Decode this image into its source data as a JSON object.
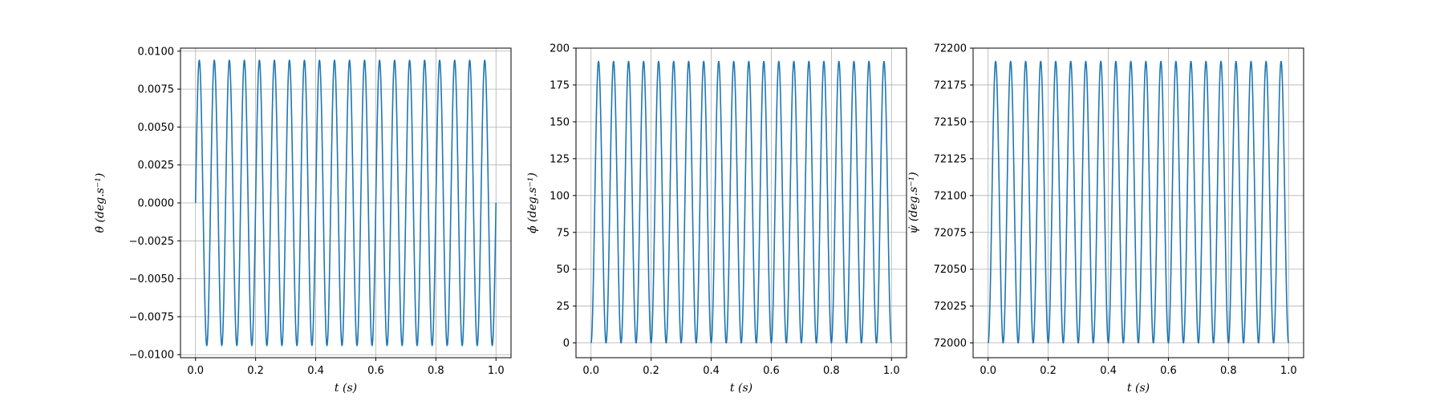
{
  "chart_data": [
    {
      "type": "line",
      "xlabel": "t (s)",
      "ylabel": "θ̇ (deg.s⁻¹)",
      "xlim": [
        -0.05,
        1.05
      ],
      "ylim": [
        -0.0102,
        0.0102
      ],
      "xticks": [
        "0.0",
        "0.2",
        "0.4",
        "0.6",
        "0.8",
        "1.0"
      ],
      "xtick_values": [
        0,
        0.2,
        0.4,
        0.6,
        0.8,
        1.0
      ],
      "yticks": [
        "−0.0100",
        "−0.0075",
        "−0.0050",
        "−0.0025",
        "0.0000",
        "0.0025",
        "0.0050",
        "0.0075",
        "0.0100"
      ],
      "ytick_values": [
        -0.01,
        -0.0075,
        -0.005,
        -0.0025,
        0,
        0.0025,
        0.005,
        0.0075,
        0.01
      ],
      "grid": true,
      "series": [
        {
          "shape": "sine",
          "x_start": 0,
          "x_end": 1.0,
          "cycles": 20,
          "amplitude": 0.0094,
          "offset": 0,
          "phase": 0,
          "color": "#1f77b4"
        }
      ]
    },
    {
      "type": "line",
      "xlabel": "t (s)",
      "ylabel": "ϕ̇ (deg.s⁻¹)",
      "xlim": [
        -0.05,
        1.05
      ],
      "ylim": [
        -10,
        200
      ],
      "xticks": [
        "0.0",
        "0.2",
        "0.4",
        "0.6",
        "0.8",
        "1.0"
      ],
      "xtick_values": [
        0,
        0.2,
        0.4,
        0.6,
        0.8,
        1.0
      ],
      "yticks": [
        "0",
        "25",
        "50",
        "75",
        "100",
        "125",
        "150",
        "175",
        "200"
      ],
      "ytick_values": [
        0,
        25,
        50,
        75,
        100,
        125,
        150,
        175,
        200
      ],
      "grid": true,
      "series": [
        {
          "shape": "raised-sine",
          "x_start": 0,
          "x_end": 1.0,
          "cycles": 20,
          "amplitude": 95.5,
          "offset": 95.5,
          "color": "#1f77b4"
        }
      ]
    },
    {
      "type": "line",
      "xlabel": "t (s)",
      "ylabel": "ψ̇ (deg.s⁻¹)",
      "xlim": [
        -0.05,
        1.05
      ],
      "ylim": [
        71990,
        72200
      ],
      "xticks": [
        "0.0",
        "0.2",
        "0.4",
        "0.6",
        "0.8",
        "1.0"
      ],
      "xtick_values": [
        0,
        0.2,
        0.4,
        0.6,
        0.8,
        1.0
      ],
      "yticks": [
        "72000",
        "72025",
        "72050",
        "72075",
        "72100",
        "72125",
        "72150",
        "72175",
        "72200"
      ],
      "ytick_values": [
        72000,
        72025,
        72050,
        72075,
        72100,
        72125,
        72150,
        72175,
        72200
      ],
      "grid": true,
      "series": [
        {
          "shape": "raised-sine",
          "x_start": 0,
          "x_end": 1.0,
          "cycles": 20,
          "amplitude": 95.5,
          "offset": 72095.5,
          "color": "#1f77b4"
        }
      ]
    }
  ]
}
